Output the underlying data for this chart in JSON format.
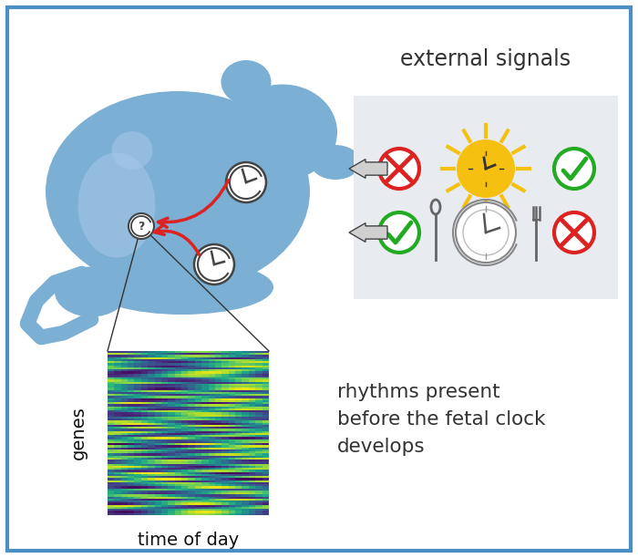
{
  "border_color": "#4A90C4",
  "background_color": "#FFFFFF",
  "mouse_color": "#7BAFD4",
  "external_signals_text": "external signals",
  "rhythms_text": "rhythms present\nbefore the fetal clock\ndevelops",
  "genes_label": "genes",
  "time_label": "time of day",
  "signal_box_color": "#E8ECF0",
  "sun_color": "#F5C010",
  "red_x_color": "#DD2222",
  "green_check_color": "#22AA22",
  "arrow_color": "#555555",
  "red_arrow_color": "#DD2222",
  "clock_edge_color": "#444444",
  "plate_color": "#AAAAAA"
}
